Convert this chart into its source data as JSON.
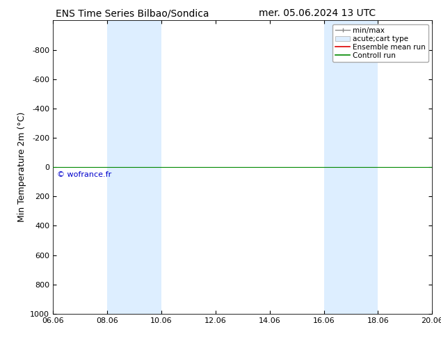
{
  "title_left": "ENS Time Series Bilbao/Sondica",
  "title_right": "mer. 05.06.2024 13 UTC",
  "ylabel": "Min Temperature 2m (°C)",
  "ylim_bottom": 1000,
  "ylim_top": -1000,
  "yticks": [
    -800,
    -600,
    -400,
    -200,
    0,
    200,
    400,
    600,
    800,
    1000
  ],
  "xtick_labels": [
    "06.06",
    "08.06",
    "10.06",
    "12.06",
    "14.06",
    "16.06",
    "18.06",
    "20.06"
  ],
  "xtick_positions": [
    0,
    2,
    4,
    6,
    8,
    10,
    12,
    14
  ],
  "xlim": [
    0,
    14
  ],
  "shaded_bands": [
    {
      "xmin": 2,
      "xmax": 4
    },
    {
      "xmin": 10,
      "xmax": 12
    }
  ],
  "green_line_y": 0,
  "watermark": "© wofrance.fr",
  "watermark_color": "#0000cc",
  "legend_entries": [
    "min/max",
    "acute;cart type",
    "Ensemble mean run",
    "Controll run"
  ],
  "legend_colors_line": [
    "#888888",
    "#ccddee",
    "#dd0000",
    "#008800"
  ],
  "bg_color": "#ffffff",
  "plot_bg_color": "#ffffff",
  "shaded_color": "#ddeeff",
  "title_fontsize": 10,
  "tick_fontsize": 8,
  "ylabel_fontsize": 9,
  "legend_fontsize": 7.5,
  "watermark_fontsize": 8
}
